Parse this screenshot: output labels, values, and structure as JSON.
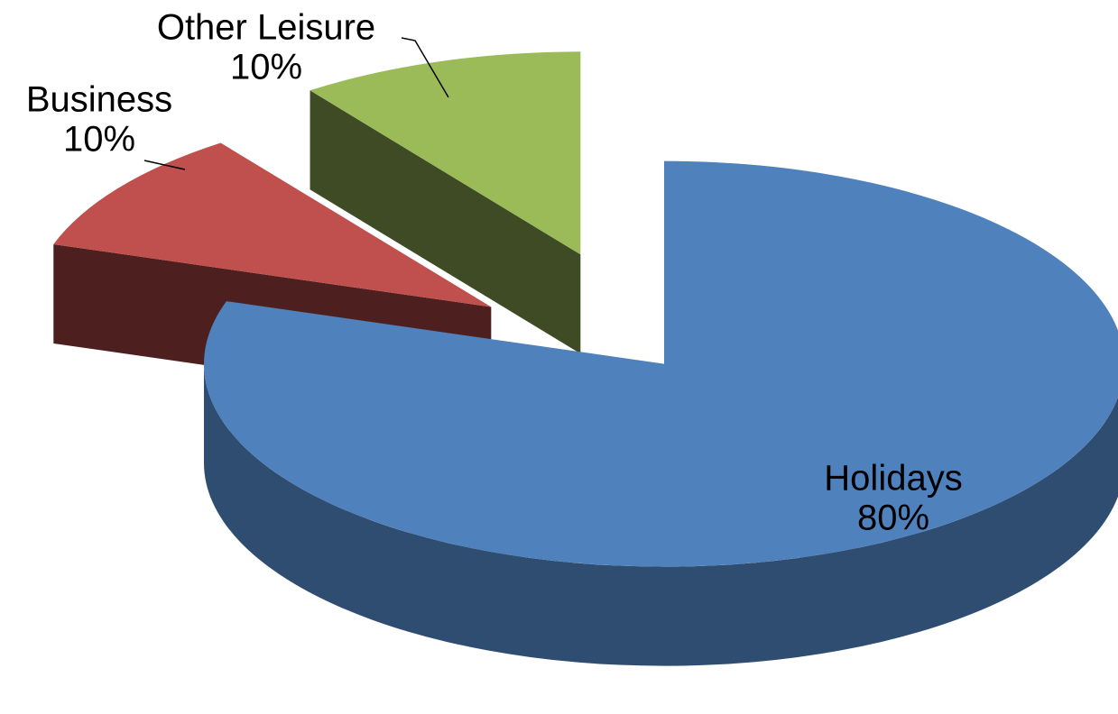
{
  "chart_data": {
    "type": "pie3d",
    "categories": [
      "Holidays",
      "Business",
      "Other Leisure"
    ],
    "values": [
      80,
      10,
      10
    ],
    "value_labels": [
      "80%",
      "10%",
      "10%"
    ],
    "colors": [
      "#4f81bd",
      "#c0504d",
      "#9bbb59"
    ]
  }
}
